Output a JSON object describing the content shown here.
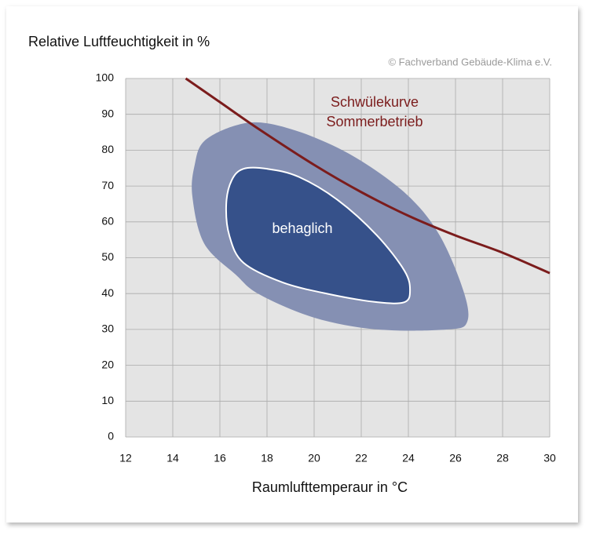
{
  "chart_data": {
    "type": "area",
    "y_axis_title": "Relative Luftfeuchtigkeit in %",
    "x_axis_title": "Raumlufttemperaur in °C",
    "credit": "© Fachverband Gebäude-Klima e.V.",
    "xlim": [
      12,
      30
    ],
    "xticks": [
      12,
      14,
      16,
      18,
      20,
      22,
      24,
      26,
      28,
      30
    ],
    "ylim": [
      0,
      100
    ],
    "yticks": [
      0,
      10,
      20,
      30,
      40,
      50,
      60,
      70,
      80,
      90,
      100
    ],
    "grid": true,
    "series": [
      {
        "type": "area",
        "color": "#8590b3",
        "x": [
          15.33,
          16.67,
          18,
          20,
          22,
          24,
          25.33,
          26.33,
          26.5,
          25.67,
          22.67,
          20,
          17.67,
          16.67,
          15.33,
          14.83,
          14.93
        ],
        "values": [
          82.5,
          86.9,
          87.5,
          83.6,
          77.0,
          67.2,
          56.2,
          40.9,
          32.2,
          30.0,
          30.0,
          33.3,
          39.8,
          45.3,
          54.0,
          67.2,
          75.9
        ]
      },
      {
        "type": "area",
        "color": "#36518a",
        "label": "behaglich",
        "x": [
          17,
          18,
          19.33,
          21,
          22.67,
          23.83,
          24.07,
          23.83,
          22.67,
          20.67,
          18.67,
          17,
          16.4,
          16.27,
          16.5
        ],
        "values": [
          74.8,
          74.8,
          72.6,
          66.1,
          56.2,
          46.4,
          40.9,
          37.6,
          37.6,
          39.8,
          43.1,
          48.6,
          56.2,
          65.0,
          71.6
        ]
      },
      {
        "type": "line",
        "color": "#7b1c1c",
        "label_lines": [
          "Schwülekurve",
          "Sommerbetrieb"
        ],
        "x": [
          14.55,
          16,
          17.67,
          20,
          22,
          24,
          26,
          28,
          30
        ],
        "values": [
          100,
          93.4,
          85.8,
          75.9,
          68.3,
          61.7,
          56.2,
          51.4,
          45.7
        ]
      }
    ]
  }
}
